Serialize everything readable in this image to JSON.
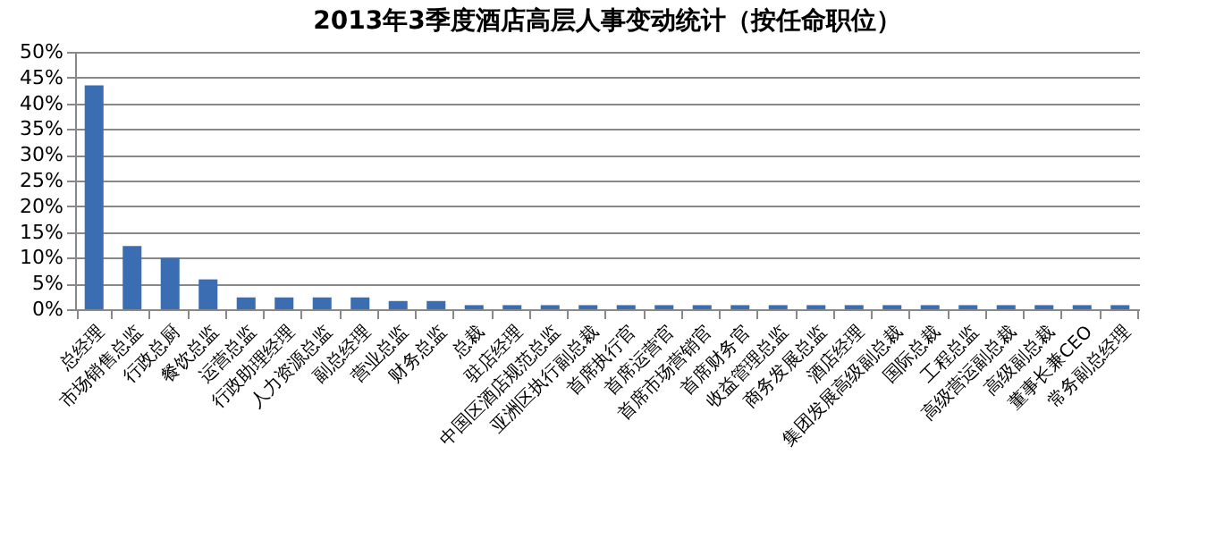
{
  "chart_data": {
    "type": "bar",
    "title": "2013年3季度酒店高层人事变动统计（按任命职位）",
    "categories": [
      "总经理",
      "市场销售总监",
      "行政总厨",
      "餐饮总监",
      "运营总监",
      "行政助理经理",
      "人力资源总监",
      "副总经理",
      "营业总监",
      "财务总监",
      "总裁",
      "驻店经理",
      "中国区酒店规范总监",
      "亚洲区执行副总裁",
      "首席执行官",
      "首席运营官",
      "首席市场营销官",
      "首席财务官",
      "收益管理总监",
      "商务发展总监",
      "酒店经理",
      "集团发展高级副总裁",
      "国际总裁",
      "工程总监",
      "高级营运副总裁",
      "高级副总裁",
      "董事长兼CEO",
      "常务副总经理"
    ],
    "values": [
      43.5,
      12.3,
      10.0,
      5.8,
      2.3,
      2.3,
      2.3,
      2.3,
      1.6,
      1.6,
      0.8,
      0.8,
      0.8,
      0.8,
      0.8,
      0.8,
      0.8,
      0.8,
      0.8,
      0.8,
      0.8,
      0.8,
      0.8,
      0.8,
      0.8,
      0.8,
      0.8,
      0.8
    ],
    "color": "#3b6db3",
    "ylim": [
      0,
      50
    ],
    "yticks": [
      {
        "value": 0,
        "label": "0%"
      },
      {
        "value": 5,
        "label": "5%"
      },
      {
        "value": 10,
        "label": "10%"
      },
      {
        "value": 15,
        "label": "15%"
      },
      {
        "value": 20,
        "label": "20%"
      },
      {
        "value": 25,
        "label": "25%"
      },
      {
        "value": 30,
        "label": "30%"
      },
      {
        "value": 35,
        "label": "35%"
      },
      {
        "value": 40,
        "label": "40%"
      },
      {
        "value": 45,
        "label": "45%"
      },
      {
        "value": 50,
        "label": "50%"
      }
    ],
    "grid": "y"
  }
}
